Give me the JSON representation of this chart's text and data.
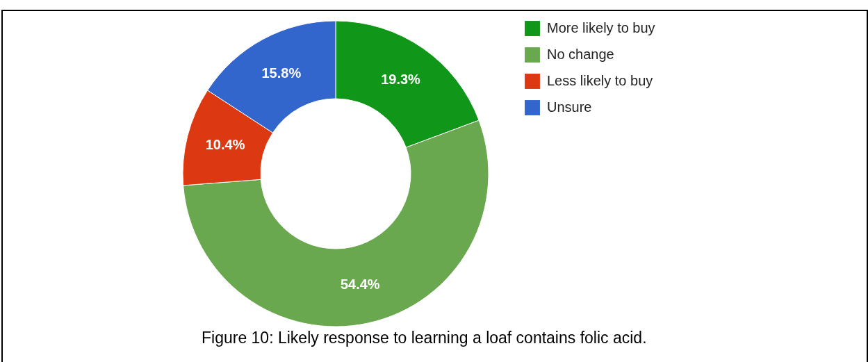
{
  "chart_data": {
    "type": "donut",
    "title": "Figure 10: Likely response to learning a loaf contains folic acid.",
    "categories": [
      "More likely to buy",
      "No change",
      "Less likely to buy",
      "Unsure"
    ],
    "values": [
      19.3,
      54.4,
      10.4,
      15.8
    ],
    "colors": [
      "#109618",
      "#6aa84f",
      "#dc3912",
      "#3366cc"
    ],
    "value_labels": [
      "19.3%",
      "54.4%",
      "10.4%",
      "15.8%"
    ],
    "legend": "top right"
  }
}
